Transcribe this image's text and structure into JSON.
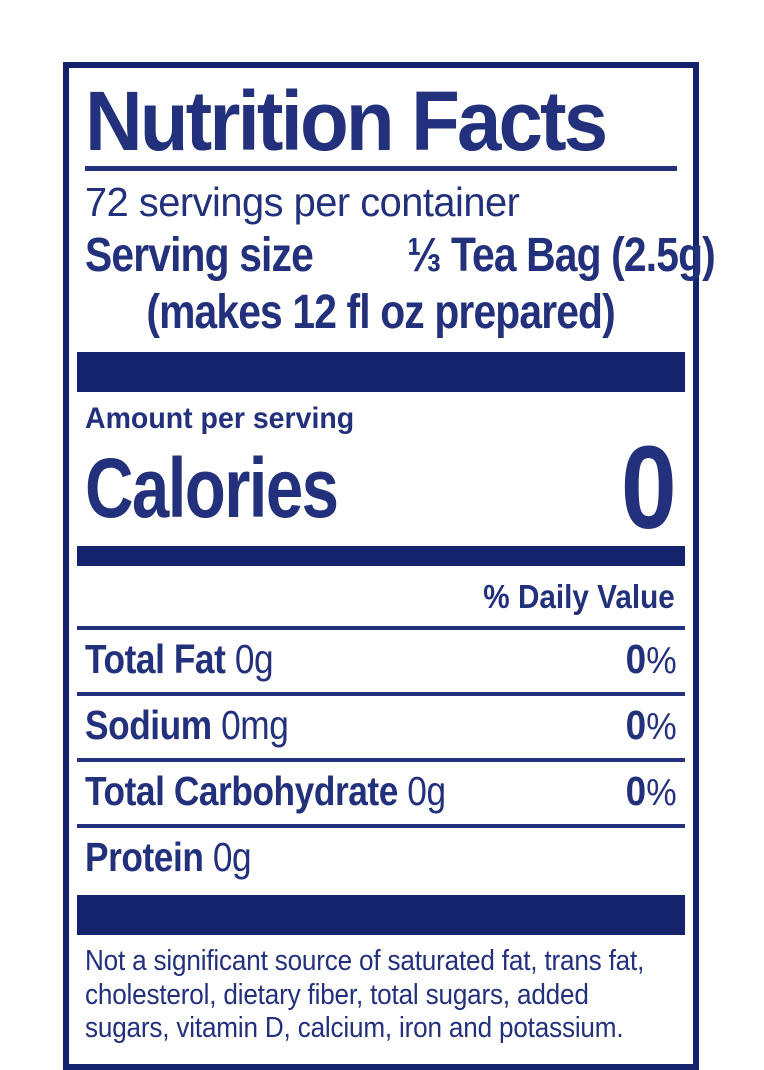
{
  "colors": {
    "ink": "#23307c",
    "bar": "#14236b"
  },
  "label": {
    "title": "Nutrition Facts",
    "servings_per_container": "72 servings per container",
    "serving_size_label": "Serving size",
    "serving_size_value": "⅓ Tea Bag (2.5g)",
    "serving_size_note": "(makes 12 fl oz prepared)",
    "amount_per_serving": "Amount per serving",
    "calories_label": "Calories",
    "calories_value": "0",
    "daily_value_header": "% Daily Value",
    "nutrients": [
      {
        "name": "Total Fat",
        "amount": "0g",
        "dv_num": "0",
        "dv_unit": "%"
      },
      {
        "name": "Sodium",
        "amount": "0mg",
        "dv_num": "0",
        "dv_unit": "%"
      },
      {
        "name": "Total Carbohydrate",
        "amount": "0g",
        "dv_num": "0",
        "dv_unit": "%"
      },
      {
        "name": "Protein",
        "amount": "0g",
        "dv_num": "",
        "dv_unit": ""
      }
    ],
    "footnote_lines": [
      "Not a significant source of saturated fat, trans fat,",
      "cholesterol, dietary fiber, total sugars, added",
      "sugars, vitamin D, calcium, iron and potassium."
    ]
  }
}
